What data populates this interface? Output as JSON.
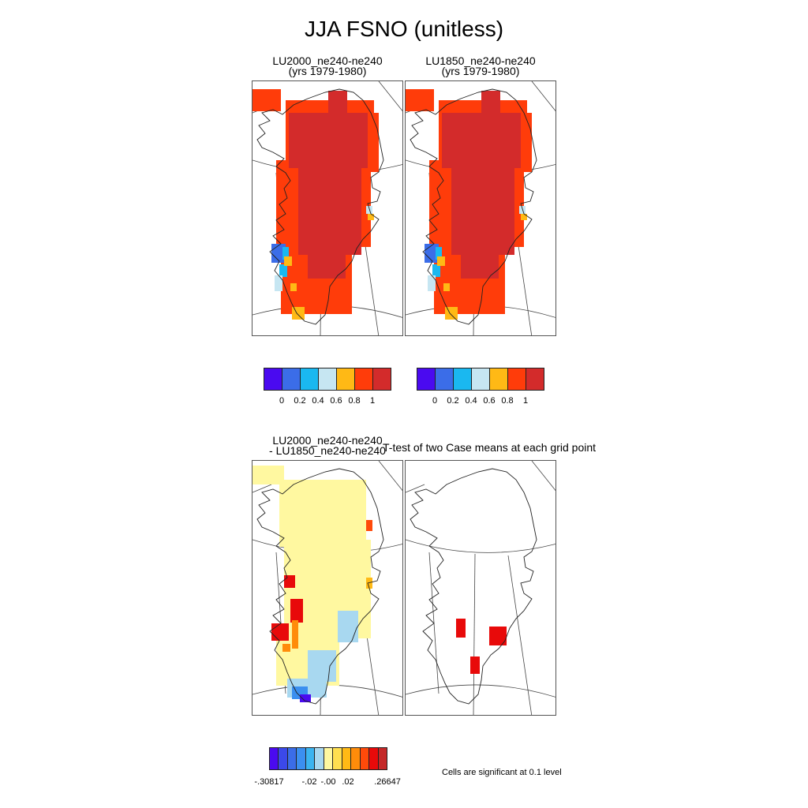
{
  "title": "JJA FSNO (unitless)",
  "panels": {
    "p1": {
      "line1": "LU2000_ne240-ne240",
      "line2": "(yrs 1979-1980)"
    },
    "p2": {
      "line1": "LU1850_ne240-ne240",
      "line2": "(yrs 1979-1980)"
    },
    "p3": {
      "line1": "LU2000_ne240-ne240",
      "line2": "- LU1850_ne240-ne240"
    },
    "p4": {
      "line1": "T-test of two Case means at each grid point"
    }
  },
  "colorbars": {
    "abs": {
      "colors": [
        "#4a0af0",
        "#3b6de8",
        "#1ab8f0",
        "#c6e6f2",
        "#ffb915",
        "#ff3c0a",
        "#d32b2b"
      ],
      "ticks": [
        "0",
        "0.2",
        "0.4",
        "0.6",
        "0.8",
        "1"
      ]
    },
    "diff": {
      "colors": [
        "#4a0af0",
        "#3b49ea",
        "#3b6de8",
        "#3b8ff0",
        "#3bb4f0",
        "#a8d8f0",
        "#fff8a0",
        "#ffdf50",
        "#ffb915",
        "#ff8c0a",
        "#ff4a0a",
        "#e80a0a",
        "#c42828"
      ],
      "ticks": [
        "-.30817",
        "-.02",
        "-.00",
        ".02",
        ".26647"
      ]
    }
  },
  "significance_note": "Cells are significant at 0.1 level"
}
